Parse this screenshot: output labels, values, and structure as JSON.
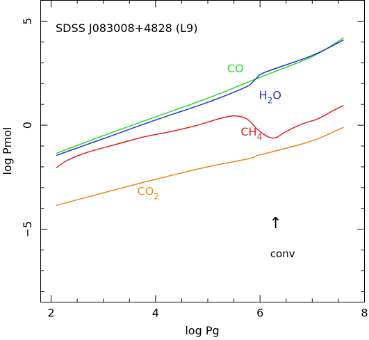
{
  "chart_data": {
    "type": "line",
    "title": "SDSS J083008+4828 (L9)",
    "xlabel": "log Pg",
    "ylabel": "log Pmol",
    "xlim": [
      1.8,
      8.0
    ],
    "ylim": [
      -8.5,
      6.0
    ],
    "xticks": [
      2,
      4,
      6,
      8
    ],
    "yticks": [
      5,
      0,
      -5
    ],
    "xtick_labels": [
      "2",
      "4",
      "6",
      "8"
    ],
    "ytick_labels": [
      "5",
      "0",
      "−5"
    ],
    "grid": false,
    "series": [
      {
        "name": "CO",
        "label_main": "CO",
        "label_sub": "",
        "color": "#22dd22",
        "points": [
          [
            2.1,
            -1.35
          ],
          [
            3.0,
            -0.5
          ],
          [
            4.0,
            0.4
          ],
          [
            5.0,
            1.3
          ],
          [
            6.0,
            2.3
          ],
          [
            7.0,
            3.3
          ],
          [
            7.6,
            4.2
          ]
        ]
      },
      {
        "name": "H2O",
        "label_main": "H",
        "label_sub": "2",
        "label_suffix": "O",
        "color": "#2233cc",
        "points": [
          [
            2.1,
            -1.45
          ],
          [
            3.0,
            -0.65
          ],
          [
            4.0,
            0.25
          ],
          [
            5.0,
            1.1
          ],
          [
            5.7,
            1.8
          ],
          [
            5.85,
            2.05
          ],
          [
            5.95,
            2.3
          ],
          [
            6.1,
            2.55
          ],
          [
            7.0,
            3.35
          ],
          [
            7.6,
            4.1
          ]
        ]
      },
      {
        "name": "CH4",
        "label_main": "CH",
        "label_sub": "4",
        "color": "#dd2222",
        "points": [
          [
            2.1,
            -2.05
          ],
          [
            2.3,
            -1.7
          ],
          [
            2.7,
            -1.3
          ],
          [
            3.2,
            -0.95
          ],
          [
            3.8,
            -0.55
          ],
          [
            4.3,
            -0.3
          ],
          [
            4.8,
            0.0
          ],
          [
            5.2,
            0.3
          ],
          [
            5.5,
            0.45
          ],
          [
            5.75,
            0.3
          ],
          [
            5.95,
            -0.2
          ],
          [
            6.15,
            -0.55
          ],
          [
            6.3,
            -0.6
          ],
          [
            6.5,
            -0.3
          ],
          [
            6.8,
            0.05
          ],
          [
            7.1,
            0.3
          ],
          [
            7.4,
            0.7
          ],
          [
            7.6,
            0.95
          ]
        ]
      },
      {
        "name": "CO2",
        "label_main": "CO",
        "label_sub": "2",
        "color": "#ee8811",
        "points": [
          [
            2.1,
            -3.85
          ],
          [
            3.0,
            -3.25
          ],
          [
            4.0,
            -2.6
          ],
          [
            5.0,
            -2.0
          ],
          [
            5.8,
            -1.6
          ],
          [
            5.95,
            -1.45
          ],
          [
            6.2,
            -1.3
          ],
          [
            7.0,
            -0.75
          ],
          [
            7.6,
            -0.1
          ]
        ]
      }
    ],
    "series_label_positions": [
      {
        "name": "CO",
        "x": 5.37,
        "y": 2.55
      },
      {
        "name": "H2O",
        "x": 5.98,
        "y": 1.25
      },
      {
        "name": "CH4",
        "x": 5.63,
        "y": -0.5
      },
      {
        "name": "CO2",
        "x": 3.65,
        "y": -3.35
      }
    ],
    "annotation": {
      "arrow_glyph": "↑",
      "text": "conv",
      "x": 6.3,
      "arrow_y": -4.95,
      "text_y": -6.35
    }
  }
}
